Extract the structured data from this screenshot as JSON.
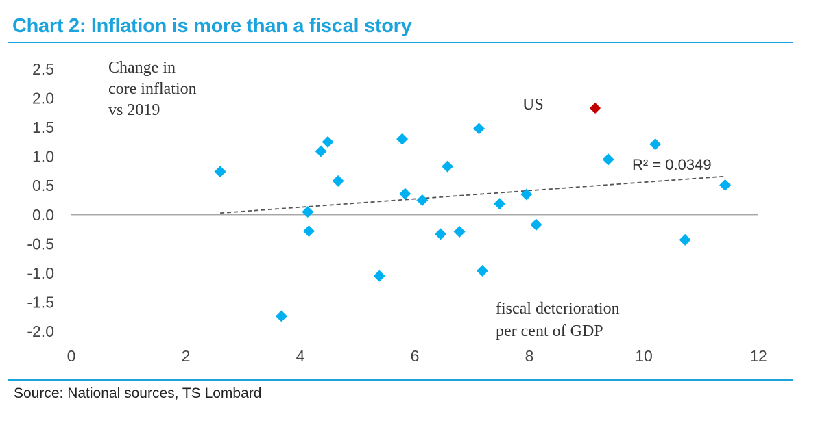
{
  "header": {
    "title": "Chart 2: Inflation is more than a fiscal story"
  },
  "footer": {
    "source": "Source: National sources, TS Lombard"
  },
  "colors": {
    "accent": "#1aa3dd",
    "points": "#00b0f0",
    "highlight": "#c00000",
    "trend": "#555555",
    "axis": "#999999"
  },
  "chart_data": {
    "type": "scatter",
    "title": "Chart 2: Inflation is more than a fiscal story",
    "ylabel_lines": [
      "Change in",
      "core inflation",
      "vs 2019"
    ],
    "xlabel_lines": [
      "fiscal deterioration",
      "per cent of GDP"
    ],
    "xlim": [
      0,
      12
    ],
    "ylim": [
      -2.0,
      2.5
    ],
    "x_ticks": [
      "0",
      "2",
      "4",
      "6",
      "8",
      "10",
      "12"
    ],
    "y_ticks": [
      "2.5",
      "2.0",
      "1.5",
      "1.0",
      "0.5",
      "0.0",
      "-0.5",
      "-1.0",
      "-1.5",
      "-2.0"
    ],
    "grid": false,
    "points": [
      {
        "x": 2.6,
        "y": 0.74
      },
      {
        "x": 3.67,
        "y": -1.74
      },
      {
        "x": 4.13,
        "y": 0.05
      },
      {
        "x": 4.15,
        "y": -0.28
      },
      {
        "x": 4.36,
        "y": 1.09
      },
      {
        "x": 4.48,
        "y": 1.25
      },
      {
        "x": 4.66,
        "y": 0.58
      },
      {
        "x": 5.38,
        "y": -1.05
      },
      {
        "x": 5.78,
        "y": 1.3
      },
      {
        "x": 5.83,
        "y": 0.36
      },
      {
        "x": 6.13,
        "y": 0.25
      },
      {
        "x": 6.45,
        "y": -0.33
      },
      {
        "x": 6.57,
        "y": 0.83
      },
      {
        "x": 6.78,
        "y": -0.29
      },
      {
        "x": 7.12,
        "y": 1.48
      },
      {
        "x": 7.18,
        "y": -0.96
      },
      {
        "x": 7.48,
        "y": 0.19
      },
      {
        "x": 7.95,
        "y": 0.35
      },
      {
        "x": 8.12,
        "y": -0.17
      },
      {
        "x": 9.38,
        "y": 0.95
      },
      {
        "x": 10.2,
        "y": 1.21
      },
      {
        "x": 10.72,
        "y": -0.43
      },
      {
        "x": 11.42,
        "y": 0.51
      }
    ],
    "highlight": {
      "label": "US",
      "x": 9.15,
      "y": 1.83
    },
    "trendline": {
      "x": [
        2.6,
        11.42
      ],
      "y": [
        0.03,
        0.66
      ],
      "label": "R² = 0.0349"
    }
  }
}
